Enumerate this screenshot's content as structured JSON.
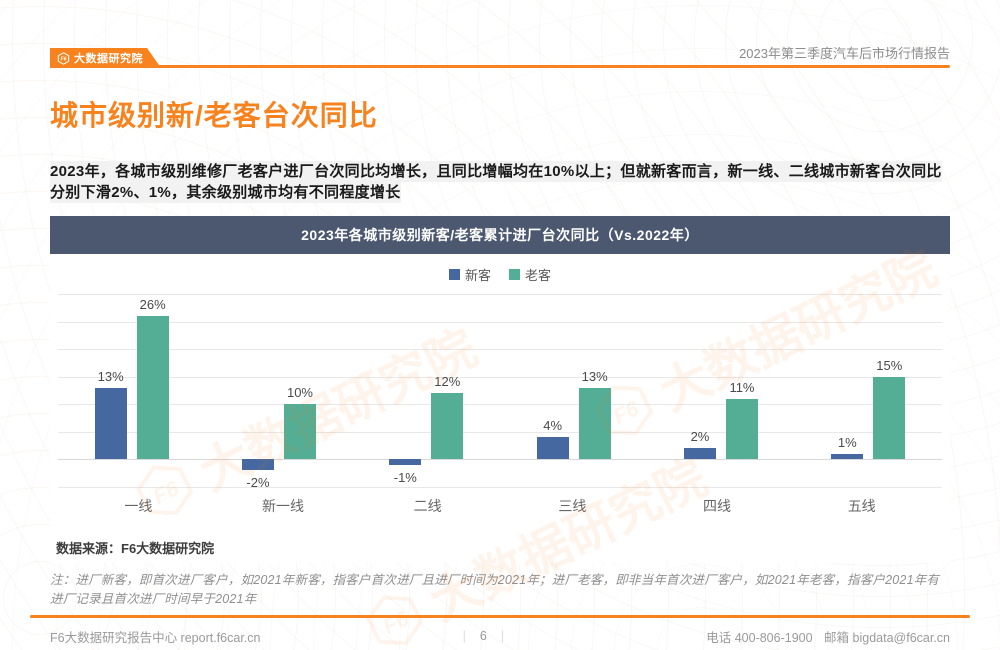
{
  "header": {
    "brand": "大数据研究院",
    "report_title": "2023年第三季度汽车后市场行情报告"
  },
  "title": "城市级别新/老客台次同比",
  "summary": "2023年，各城市级别维修厂老客户进厂台次同比均增长，且同比增幅均在10%以上；但就新客而言，新一线、二线城市新客台次同比分别下滑2%、1%，其余级别城市均有不同程度增长",
  "chart_data": {
    "type": "bar",
    "title": "2023年各城市级别新客/老客累计进厂台次同比（Vs.2022年）",
    "categories": [
      "一线",
      "新一线",
      "二线",
      "三线",
      "四线",
      "五线"
    ],
    "series": [
      {
        "name": "新客",
        "color": "#44689F",
        "values": [
          13,
          -2,
          -1,
          4,
          2,
          1
        ]
      },
      {
        "name": "老客",
        "color": "#53AE95",
        "values": [
          26,
          10,
          12,
          13,
          11,
          15
        ]
      }
    ],
    "value_suffix": "%",
    "ylim": [
      -5,
      30
    ],
    "grid_step": 5,
    "grid": "on",
    "legend_position": "top",
    "source": "数据来源：F6大数据研究院"
  },
  "note": "注：进厂新客，即首次进厂客户，如2021年新客，指客户首次进厂且进厂时间为2021年；进厂老客，即非当年首次进厂客户，如2021年老客，指客户2021年有进厂记录且首次进厂时间早于2021年",
  "footer": {
    "left": "F6大数据研究报告中心 report.f6car.cn",
    "page": "6",
    "right_phone": "电话 400-806-1900",
    "right_email": "邮箱 bigdata@f6car.cn"
  },
  "watermark": {
    "text": "大数据研究院",
    "logo": "F6"
  },
  "colors": {
    "accent": "#F8821E",
    "chart_header": "#4B5870",
    "new_customer": "#44689F",
    "old_customer": "#53AE95"
  }
}
